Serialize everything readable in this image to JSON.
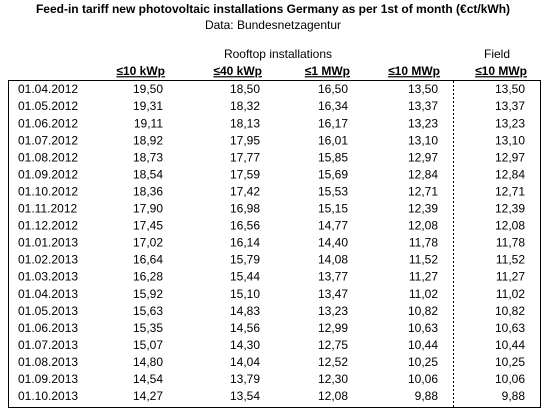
{
  "header": {
    "title": "Feed-in tariff new photovoltaic installations Germany as per 1st of month (€ct/kWh)",
    "subtitle": "Data: Bundesnetzagentur"
  },
  "table": {
    "groups": [
      "Rooftop installations",
      "Field"
    ],
    "columns": [
      "≤10 kWp",
      "≤40 kWp",
      "≤1 MWp",
      "≤10 MWp",
      "≤10 MWp"
    ],
    "rows": [
      [
        "01.04.2012",
        "19,50",
        "18,50",
        "16,50",
        "13,50",
        "13,50"
      ],
      [
        "01.05.2012",
        "19,31",
        "18,32",
        "16,34",
        "13,37",
        "13,37"
      ],
      [
        "01.06.2012",
        "19,11",
        "18,13",
        "16,17",
        "13,23",
        "13,23"
      ],
      [
        "01.07.2012",
        "18,92",
        "17,95",
        "16,01",
        "13,10",
        "13,10"
      ],
      [
        "01.08.2012",
        "18,73",
        "17,77",
        "15,85",
        "12,97",
        "12,97"
      ],
      [
        "01.09.2012",
        "18,54",
        "17,59",
        "15,69",
        "12,84",
        "12,84"
      ],
      [
        "01.10.2012",
        "18,36",
        "17,42",
        "15,53",
        "12,71",
        "12,71"
      ],
      [
        "01.11.2012",
        "17,90",
        "16,98",
        "15,15",
        "12,39",
        "12,39"
      ],
      [
        "01.12.2012",
        "17,45",
        "16,56",
        "14,77",
        "12,08",
        "12,08"
      ],
      [
        "01.01.2013",
        "17,02",
        "16,14",
        "14,40",
        "11,78",
        "11,78"
      ],
      [
        "01.02.2013",
        "16,64",
        "15,79",
        "14,08",
        "11,52",
        "11,52"
      ],
      [
        "01.03.2013",
        "16,28",
        "15,44",
        "13,77",
        "11,27",
        "11,27"
      ],
      [
        "01.04.2013",
        "15,92",
        "15,10",
        "13,47",
        "11,02",
        "11,02"
      ],
      [
        "01.05.2013",
        "15,63",
        "14,83",
        "13,23",
        "10,82",
        "10,82"
      ],
      [
        "01.06.2013",
        "15,35",
        "14,56",
        "12,99",
        "10,63",
        "10,63"
      ],
      [
        "01.07.2013",
        "15,07",
        "14,30",
        "12,75",
        "10,44",
        "10,44"
      ],
      [
        "01.08.2013",
        "14,80",
        "14,04",
        "12,52",
        "10,25",
        "10,25"
      ],
      [
        "01.09.2013",
        "14,54",
        "13,79",
        "12,30",
        "10,06",
        "10,06"
      ],
      [
        "01.10.2013",
        "14,27",
        "13,54",
        "12,08",
        "9,88",
        "9,88"
      ]
    ]
  }
}
